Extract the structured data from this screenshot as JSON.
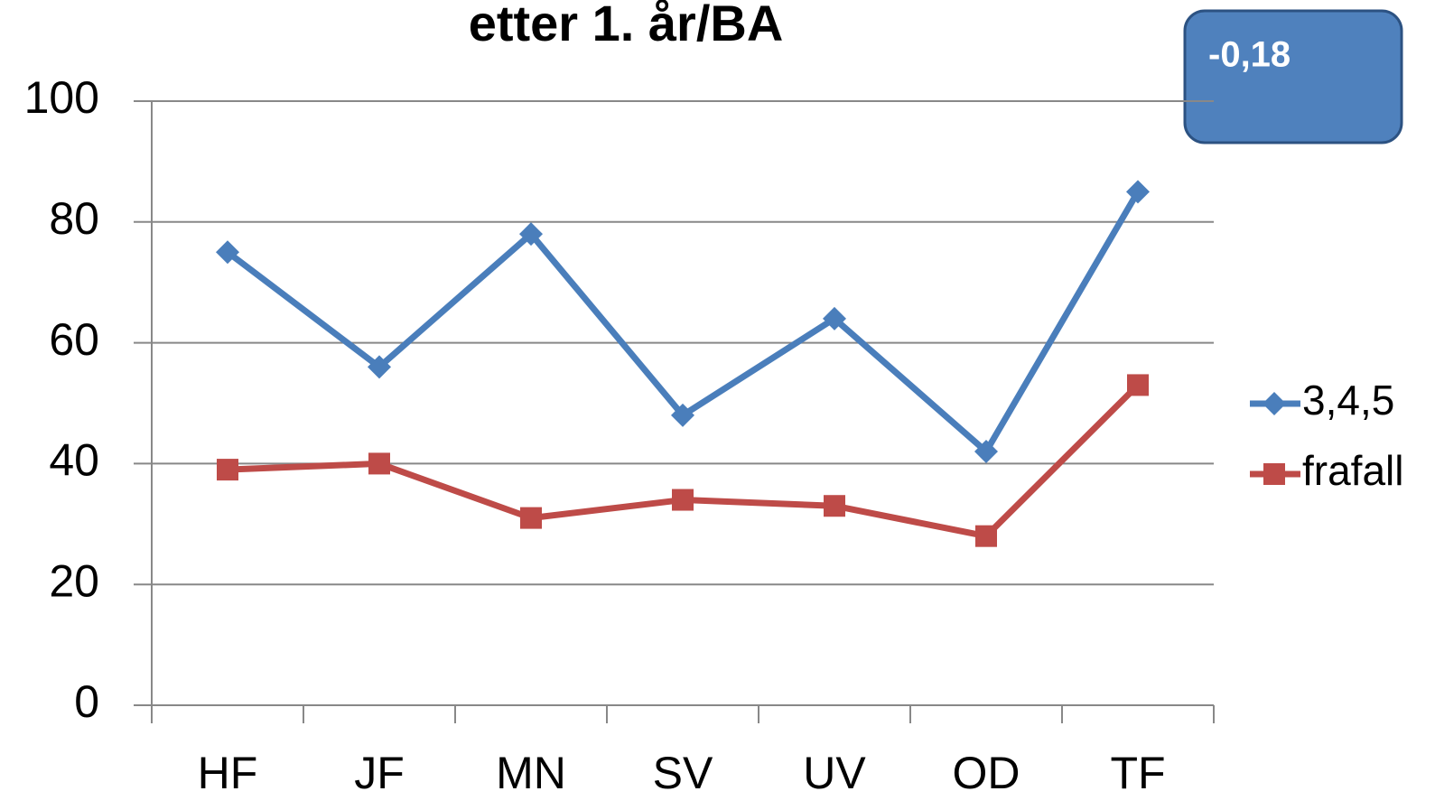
{
  "chart_data": {
    "type": "line",
    "title": "etter 1. år/BA",
    "annotation": "-0,18",
    "categories": [
      "HF",
      "JF",
      "MN",
      "SV",
      "UV",
      "OD",
      "TF"
    ],
    "series": [
      {
        "name": "3,4,5",
        "color": "#4a7ebb",
        "marker": "diamond",
        "values": [
          75,
          56,
          78,
          48,
          64,
          42,
          85
        ]
      },
      {
        "name": "frafall",
        "color": "#be4b48",
        "marker": "square",
        "values": [
          39,
          40,
          31,
          34,
          33,
          28,
          53
        ]
      }
    ],
    "ylim": [
      0,
      100
    ],
    "yticks": [
      0,
      20,
      40,
      60,
      80,
      100
    ],
    "grid": true,
    "legend": "right"
  }
}
